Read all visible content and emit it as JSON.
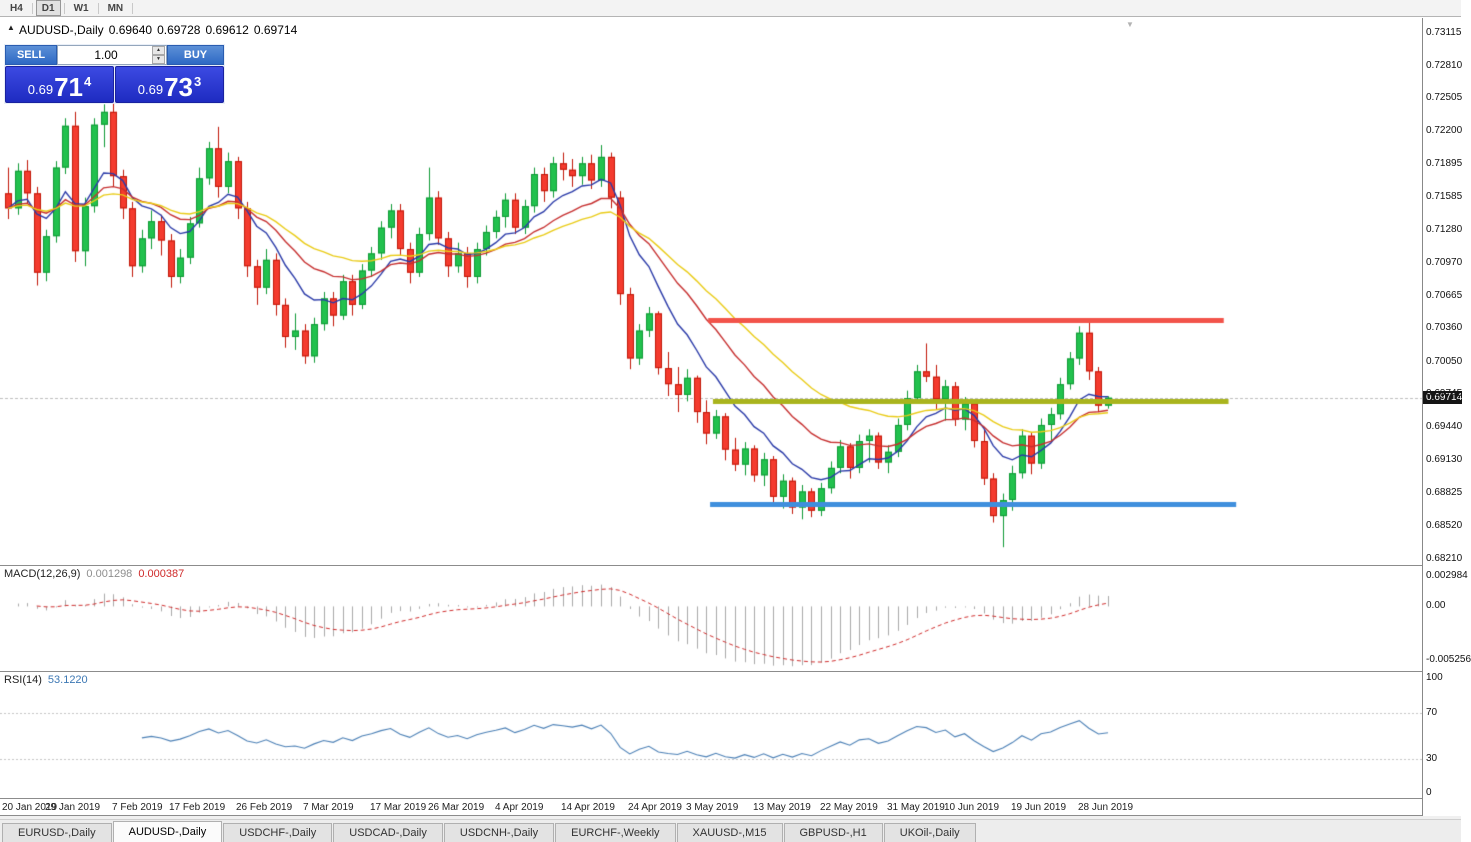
{
  "toolbar": {
    "timeframes": [
      "H4",
      "D1",
      "W1",
      "MN"
    ],
    "active_timeframe": "D1"
  },
  "info_line": {
    "symbol": "AUDUSD-,Daily",
    "open": "0.69640",
    "high": "0.69728",
    "low": "0.69612",
    "close": "0.69714"
  },
  "trade_panel": {
    "sell_label": "SELL",
    "buy_label": "BUY",
    "volume": "1.00",
    "bid": {
      "prefix": "0.69",
      "big": "71",
      "pip": "4"
    },
    "ask": {
      "prefix": "0.69",
      "big": "73",
      "pip": "3"
    }
  },
  "price_axis": {
    "ticks": [
      "0.73115",
      "0.72810",
      "0.72505",
      "0.72200",
      "0.71895",
      "0.71585",
      "0.71280",
      "0.70970",
      "0.70665",
      "0.70360",
      "0.70050",
      "0.69745",
      "0.69440",
      "0.69130",
      "0.68825",
      "0.68520",
      "0.68210"
    ],
    "current_price": "0.69714"
  },
  "chart_data": {
    "type": "candlestick",
    "symbol": "AUDUSD",
    "timeframe": "Daily",
    "title": "AUDUSD-,Daily",
    "ohlc_display": [
      "0.69640",
      "0.69728",
      "0.69612",
      "0.69714"
    ],
    "y_range": [
      0.6821,
      0.73115
    ],
    "date_labels": [
      "20 Jan 2019",
      "29 Jan 2019",
      "7 Feb 2019",
      "17 Feb 2019",
      "26 Feb 2019",
      "7 Mar 2019",
      "17 Mar 2019",
      "26 Mar 2019",
      "4 Apr 2019",
      "14 Apr 2019",
      "24 Apr 2019",
      "3 May 2019",
      "13 May 2019",
      "22 May 2019",
      "31 May 2019",
      "10 Jun 2019",
      "19 Jun 2019",
      "28 Jun 2019"
    ],
    "moving_averages": [
      {
        "name": "fast",
        "method": "ema",
        "period": 9,
        "color": "#2a3aa8"
      },
      {
        "name": "medium",
        "method": "ema",
        "period": 18,
        "color": "#c62f2f"
      },
      {
        "name": "slow",
        "method": "ema",
        "period": 30,
        "color": "#e9cb16"
      }
    ],
    "horizontal_lines": [
      {
        "name": "resistance",
        "price": 0.7044,
        "color": "#f2534a",
        "from_index": 73.2,
        "to_index": 127.1,
        "thickness": 5
      },
      {
        "name": "mid-level",
        "price": 0.6968,
        "color": "#a9b41d",
        "from_index": 73.7,
        "to_index": 127.6,
        "thickness": 5
      },
      {
        "name": "support",
        "price": 0.6872,
        "color": "#3f8fdd",
        "from_index": 73.4,
        "to_index": 128.4,
        "thickness": 5
      }
    ],
    "candle_colors": {
      "up": "#22c14e",
      "up_border": "#0e9a35",
      "down": "#f43b2e",
      "down_border": "#c11607"
    },
    "candles": [
      [
        0.7162,
        0.7186,
        0.7138,
        0.7148
      ],
      [
        0.7148,
        0.719,
        0.7142,
        0.7183
      ],
      [
        0.7183,
        0.7193,
        0.7152,
        0.7162
      ],
      [
        0.7162,
        0.7168,
        0.7076,
        0.7088
      ],
      [
        0.7088,
        0.7128,
        0.708,
        0.7122
      ],
      [
        0.7122,
        0.7192,
        0.7116,
        0.7186
      ],
      [
        0.7186,
        0.7232,
        0.718,
        0.7225
      ],
      [
        0.7225,
        0.7238,
        0.7098,
        0.7108
      ],
      [
        0.7108,
        0.7158,
        0.7094,
        0.715
      ],
      [
        0.715,
        0.7232,
        0.7144,
        0.7226
      ],
      [
        0.7226,
        0.7245,
        0.7205,
        0.7238
      ],
      [
        0.7238,
        0.7246,
        0.7168,
        0.7178
      ],
      [
        0.7178,
        0.7184,
        0.7138,
        0.7148
      ],
      [
        0.7148,
        0.7154,
        0.7084,
        0.7094
      ],
      [
        0.7094,
        0.7128,
        0.7088,
        0.712
      ],
      [
        0.712,
        0.7146,
        0.711,
        0.7136
      ],
      [
        0.7136,
        0.7142,
        0.7104,
        0.7118
      ],
      [
        0.7118,
        0.7124,
        0.7074,
        0.7084
      ],
      [
        0.7084,
        0.711,
        0.7078,
        0.7102
      ],
      [
        0.7102,
        0.714,
        0.7096,
        0.7134
      ],
      [
        0.7134,
        0.7186,
        0.713,
        0.7176
      ],
      [
        0.7176,
        0.721,
        0.717,
        0.7204
      ],
      [
        0.7204,
        0.7224,
        0.7158,
        0.7168
      ],
      [
        0.7168,
        0.72,
        0.7162,
        0.7192
      ],
      [
        0.7192,
        0.7196,
        0.7138,
        0.7148
      ],
      [
        0.7148,
        0.7154,
        0.7084,
        0.7094
      ],
      [
        0.7094,
        0.71,
        0.7058,
        0.7074
      ],
      [
        0.7074,
        0.711,
        0.7068,
        0.71
      ],
      [
        0.71,
        0.7106,
        0.7048,
        0.7058
      ],
      [
        0.7058,
        0.7064,
        0.7018,
        0.7028
      ],
      [
        0.7028,
        0.705,
        0.7016,
        0.7034
      ],
      [
        0.7034,
        0.704,
        0.7003,
        0.701
      ],
      [
        0.701,
        0.7046,
        0.7004,
        0.704
      ],
      [
        0.704,
        0.707,
        0.7034,
        0.7064
      ],
      [
        0.7064,
        0.707,
        0.7038,
        0.7048
      ],
      [
        0.7048,
        0.7086,
        0.7044,
        0.708
      ],
      [
        0.708,
        0.7086,
        0.7048,
        0.7058
      ],
      [
        0.7058,
        0.7096,
        0.7054,
        0.709
      ],
      [
        0.709,
        0.7112,
        0.7084,
        0.7106
      ],
      [
        0.7106,
        0.7136,
        0.71,
        0.713
      ],
      [
        0.713,
        0.7152,
        0.712,
        0.7146
      ],
      [
        0.7146,
        0.7152,
        0.7104,
        0.711
      ],
      [
        0.711,
        0.7116,
        0.7078,
        0.7088
      ],
      [
        0.7088,
        0.713,
        0.7084,
        0.7124
      ],
      [
        0.7124,
        0.7186,
        0.7118,
        0.7158
      ],
      [
        0.7158,
        0.7164,
        0.7114,
        0.712
      ],
      [
        0.712,
        0.7126,
        0.7084,
        0.7094
      ],
      [
        0.7094,
        0.7116,
        0.7088,
        0.7106
      ],
      [
        0.7106,
        0.7112,
        0.7074,
        0.7084
      ],
      [
        0.7084,
        0.7116,
        0.7078,
        0.711
      ],
      [
        0.711,
        0.7132,
        0.7104,
        0.7126
      ],
      [
        0.7126,
        0.7146,
        0.712,
        0.714
      ],
      [
        0.714,
        0.7162,
        0.713,
        0.7156
      ],
      [
        0.7156,
        0.7162,
        0.7124,
        0.713
      ],
      [
        0.713,
        0.7156,
        0.7124,
        0.715
      ],
      [
        0.715,
        0.7186,
        0.7144,
        0.718
      ],
      [
        0.718,
        0.7186,
        0.7154,
        0.7164
      ],
      [
        0.7164,
        0.7196,
        0.7158,
        0.719
      ],
      [
        0.719,
        0.72,
        0.7174,
        0.7184
      ],
      [
        0.7184,
        0.7194,
        0.7168,
        0.7178
      ],
      [
        0.7178,
        0.7196,
        0.717,
        0.719
      ],
      [
        0.719,
        0.7198,
        0.7166,
        0.7174
      ],
      [
        0.7174,
        0.7207,
        0.7168,
        0.7196
      ],
      [
        0.7196,
        0.72,
        0.7148,
        0.7158
      ],
      [
        0.7158,
        0.7164,
        0.7058,
        0.7068
      ],
      [
        0.7068,
        0.7074,
        0.6998,
        0.7008
      ],
      [
        0.7008,
        0.704,
        0.7002,
        0.7034
      ],
      [
        0.7034,
        0.7056,
        0.7028,
        0.705
      ],
      [
        0.705,
        0.7052,
        0.6993,
        0.6999
      ],
      [
        0.6999,
        0.7014,
        0.6973,
        0.6984
      ],
      [
        0.6984,
        0.7,
        0.6958,
        0.6974
      ],
      [
        0.6974,
        0.6998,
        0.6968,
        0.699
      ],
      [
        0.699,
        0.6992,
        0.6948,
        0.6958
      ],
      [
        0.6958,
        0.6969,
        0.6928,
        0.6938
      ],
      [
        0.6938,
        0.696,
        0.6933,
        0.6954
      ],
      [
        0.6954,
        0.6957,
        0.6913,
        0.6923
      ],
      [
        0.6923,
        0.6934,
        0.6903,
        0.6909
      ],
      [
        0.6909,
        0.693,
        0.6899,
        0.6924
      ],
      [
        0.6924,
        0.6927,
        0.6893,
        0.6899
      ],
      [
        0.6899,
        0.692,
        0.6889,
        0.6914
      ],
      [
        0.6914,
        0.6917,
        0.6873,
        0.6879
      ],
      [
        0.6879,
        0.69,
        0.6868,
        0.6894
      ],
      [
        0.6894,
        0.6897,
        0.6863,
        0.6869
      ],
      [
        0.6869,
        0.689,
        0.6858,
        0.6884
      ],
      [
        0.6884,
        0.6887,
        0.686,
        0.6866
      ],
      [
        0.6866,
        0.6892,
        0.6861,
        0.6887
      ],
      [
        0.6887,
        0.6912,
        0.6882,
        0.6906
      ],
      [
        0.6906,
        0.6932,
        0.6901,
        0.6926
      ],
      [
        0.6926,
        0.6929,
        0.6896,
        0.6906
      ],
      [
        0.6906,
        0.6937,
        0.6901,
        0.6931
      ],
      [
        0.6931,
        0.6942,
        0.6911,
        0.6936
      ],
      [
        0.6936,
        0.6939,
        0.6905,
        0.6911
      ],
      [
        0.6911,
        0.6927,
        0.6901,
        0.6921
      ],
      [
        0.6921,
        0.6952,
        0.6916,
        0.6946
      ],
      [
        0.6946,
        0.6978,
        0.6941,
        0.6971
      ],
      [
        0.6971,
        0.7002,
        0.6966,
        0.6996
      ],
      [
        0.6996,
        0.7022,
        0.6986,
        0.6991
      ],
      [
        0.6991,
        0.7002,
        0.696,
        0.697
      ],
      [
        0.697,
        0.6988,
        0.695,
        0.6982
      ],
      [
        0.6982,
        0.6986,
        0.6945,
        0.6951
      ],
      [
        0.6951,
        0.6972,
        0.6941,
        0.6966
      ],
      [
        0.6966,
        0.6969,
        0.6925,
        0.6931
      ],
      [
        0.6931,
        0.6942,
        0.689,
        0.6896
      ],
      [
        0.6896,
        0.6901,
        0.6855,
        0.6861
      ],
      [
        0.6861,
        0.6882,
        0.6832,
        0.6876
      ],
      [
        0.6876,
        0.6908,
        0.6866,
        0.6901
      ],
      [
        0.6901,
        0.6942,
        0.6896,
        0.6936
      ],
      [
        0.6936,
        0.6939,
        0.69,
        0.691
      ],
      [
        0.691,
        0.6952,
        0.6905,
        0.6946
      ],
      [
        0.6946,
        0.6962,
        0.693,
        0.6956
      ],
      [
        0.6956,
        0.699,
        0.6951,
        0.6984
      ],
      [
        0.6984,
        0.7014,
        0.6979,
        0.7008
      ],
      [
        0.7008,
        0.7038,
        0.7002,
        0.7032
      ],
      [
        0.7032,
        0.7042,
        0.6988,
        0.6996
      ],
      [
        0.6996,
        0.7,
        0.6958,
        0.6964
      ],
      [
        0.6964,
        0.69728,
        0.69612,
        0.69714
      ]
    ]
  },
  "macd_panel": {
    "label": "MACD(12,26,9)",
    "main_value": "0.001298",
    "signal_value": "0.000387",
    "fast": 12,
    "slow": 26,
    "signal": 9,
    "axis_ticks": [
      "0.002984",
      "0.00",
      "-0.005256"
    ],
    "axis_values": [
      0.002984,
      0,
      -0.005256
    ],
    "histogram_color": "#a8a8a8",
    "signal_color": "#cf2b2b"
  },
  "rsi_panel": {
    "label": "RSI(14)",
    "value": "53.1220",
    "period": 14,
    "axis_ticks": [
      "100",
      "70",
      "30",
      "0"
    ],
    "axis_tick_values": [
      100,
      70,
      30,
      0
    ],
    "levels": [
      70,
      30
    ],
    "line_color": "#4a7fb5"
  },
  "tabs": {
    "items": [
      "EURUSD-,Daily",
      "AUDUSD-,Daily",
      "USDCHF-,Daily",
      "USDCAD-,Daily",
      "USDCNH-,Daily",
      "EURCHF-,Weekly",
      "XAUUSD-,M15",
      "GBPUSD-,H1",
      "UKOil-,Daily"
    ],
    "active": "AUDUSD-,Daily"
  }
}
